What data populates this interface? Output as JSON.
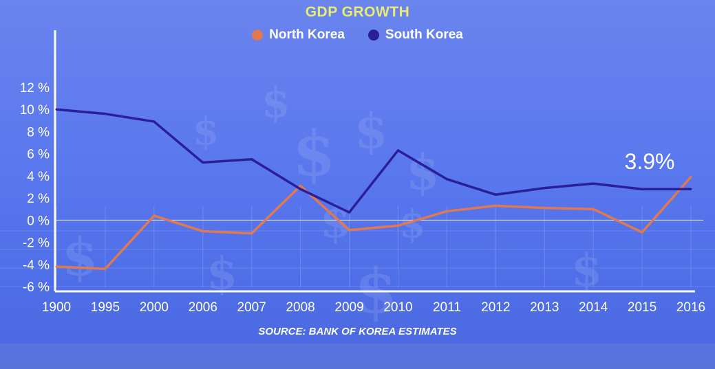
{
  "chart_data": {
    "type": "line",
    "title": "GDP GROWTH",
    "categories": [
      "1900",
      "1995",
      "2000",
      "2006",
      "2007",
      "2008",
      "2009",
      "2010",
      "2011",
      "2012",
      "2013",
      "2014",
      "2015",
      "2016"
    ],
    "yticks": [
      "12 %",
      "10 %",
      "8 %",
      "6 %",
      "4 %",
      "2 %",
      "0 %",
      "-2 %",
      "-4 %",
      "-6 %"
    ],
    "ylim": [
      -6,
      12
    ],
    "series": [
      {
        "name": "North Korea",
        "color": "#e0794f",
        "values": [
          -4.2,
          -4.4,
          0.4,
          -1.0,
          -1.2,
          3.1,
          -0.9,
          -0.5,
          0.8,
          1.3,
          1.1,
          1.0,
          -1.1,
          3.9
        ]
      },
      {
        "name": "South Korea",
        "color": "#2b1f98",
        "values": [
          10.0,
          9.6,
          8.9,
          5.2,
          5.5,
          2.8,
          0.7,
          6.3,
          3.7,
          2.3,
          2.9,
          3.3,
          2.8,
          2.8
        ]
      }
    ],
    "annotation": "3.9%",
    "source": "SOURCE: BANK OF KOREA ESTIMATES",
    "grid": true,
    "legend_position": "top-center"
  }
}
